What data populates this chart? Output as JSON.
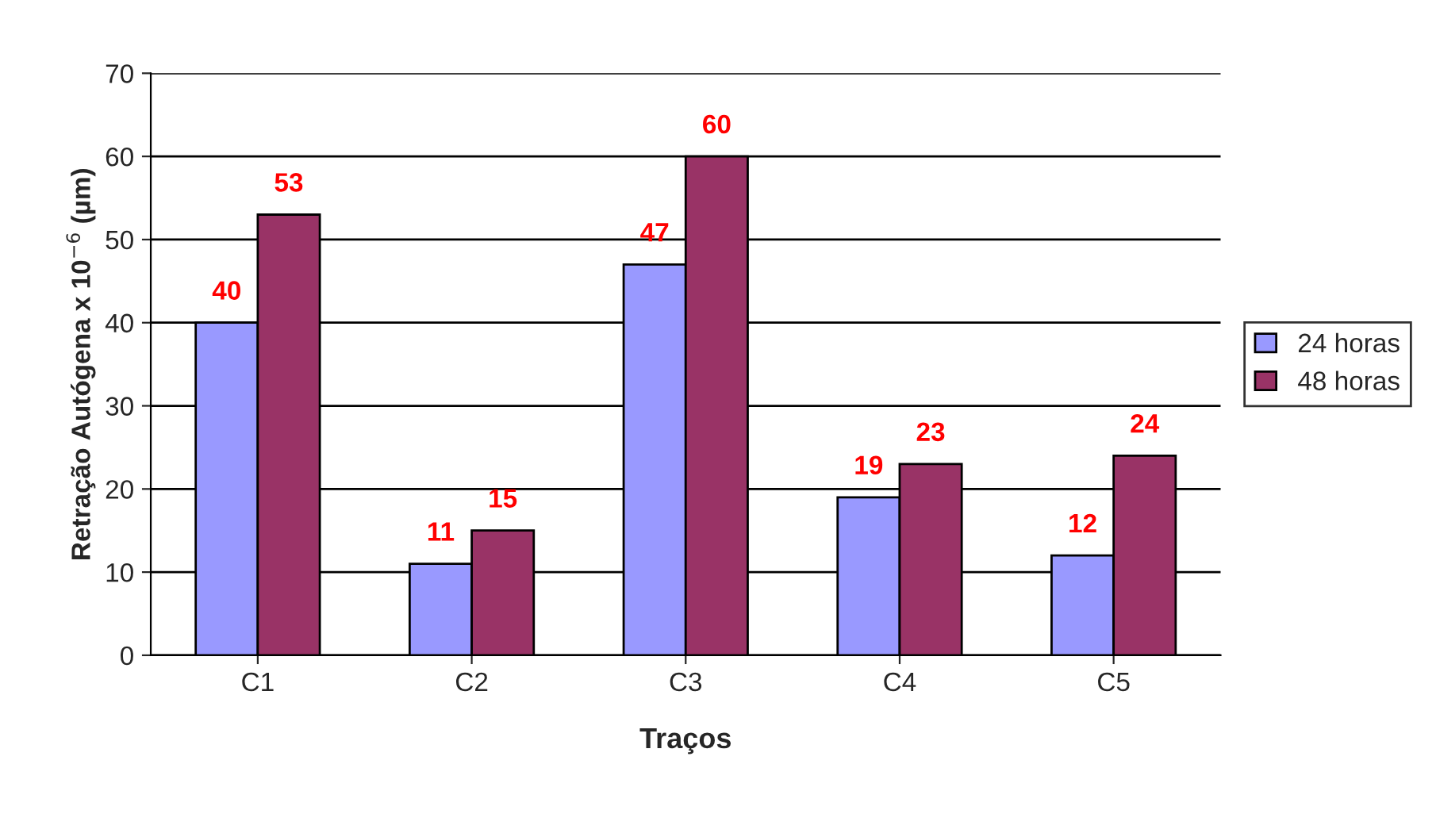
{
  "chart_data": {
    "type": "bar",
    "xlabel": "Traços",
    "ylabel": "Retração Autógena x 10$^{−6}$ (µm)",
    "categories": [
      "C1",
      "C2",
      "C3",
      "C4",
      "C5"
    ],
    "series": [
      {
        "name": "24 horas",
        "color": "#9999ff",
        "values": [
          40,
          11,
          47,
          19,
          12
        ]
      },
      {
        "name": "48 horas",
        "color": "#993366",
        "values": [
          53,
          15,
          60,
          23,
          24
        ]
      }
    ],
    "ylim": [
      0,
      70
    ],
    "yticks": [
      0,
      10,
      20,
      30,
      40,
      50,
      60,
      70
    ],
    "grid": "y",
    "legend": "right",
    "data_labels": true
  }
}
